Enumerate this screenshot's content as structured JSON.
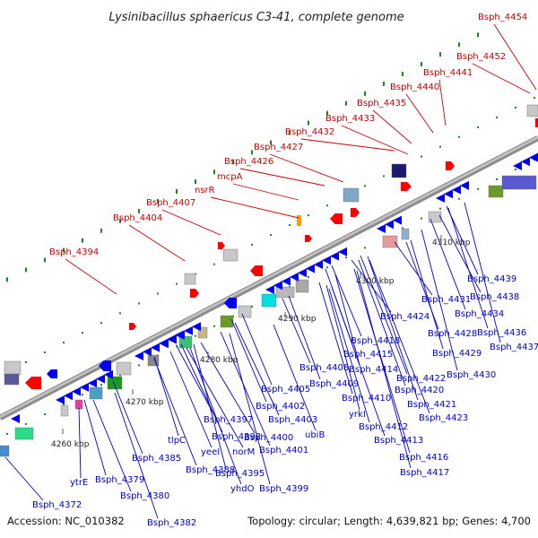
{
  "title": "Lysinibacillus sphaericus C3-41, complete genome",
  "footer": {
    "accession": "Accession: NC_010382",
    "summary": "Topology: circular; Length: 4,639,821 bp; Genes: 4,700"
  },
  "colors": {
    "forward_label": "#cc0000",
    "reverse_label": "#0000cc",
    "backbone": "#9a9a9a",
    "tick": "#1a8a1a"
  },
  "kbp_labels": [
    "4260 kbp",
    "4270 kbp",
    "4280 kbp",
    "4290 kbp",
    "4300 kbp",
    "4310 kbp"
  ],
  "forward_labels": [
    "Bsph_4454",
    "Bsph_4452",
    "Bsph_4441",
    "Bsph_4440",
    "Bsph_4435",
    "Bsph_4433",
    "Bsph_4432",
    "Bsph_4427",
    "Bsph_4426",
    "mcpA",
    "nsrR",
    "Bsph_4407",
    "Bsph_4404",
    "Bsph_4394"
  ],
  "reverse_labels": [
    "Bsph_4439",
    "Bsph_4438",
    "Bsph_4431",
    "Bsph_4434",
    "Bsph_4436",
    "Bsph_4437",
    "Bsph_4424",
    "Bsph_4428",
    "Bsph_4429",
    "Bsph_4430",
    "Bsph_4418",
    "Bsph_4415",
    "Bsph_4422",
    "Bsph_4414",
    "Bsph_4420",
    "Bsph_4408",
    "Bsph_4409",
    "Bsph_4410",
    "Bsph_4421",
    "Bsph_4423",
    "yrkI",
    "Bsph_4412",
    "Bsph_4413",
    "Bsph_4416",
    "Bsph_4417",
    "Bsph_4405",
    "Bsph_4402",
    "Bsph_4403",
    "ubiB",
    "Bsph_4397",
    "Bsph_4392",
    "Bsph_4400",
    "tlpC",
    "yeeI",
    "norM",
    "Bsph_4401",
    "Bsph_4385",
    "Bsph_4388",
    "Bsph_4395",
    "Bsph_4399",
    "yhdO",
    "ytrE",
    "Bsph_4379",
    "Bsph_4380",
    "Bsph_4372",
    "Bsph_4382"
  ]
}
